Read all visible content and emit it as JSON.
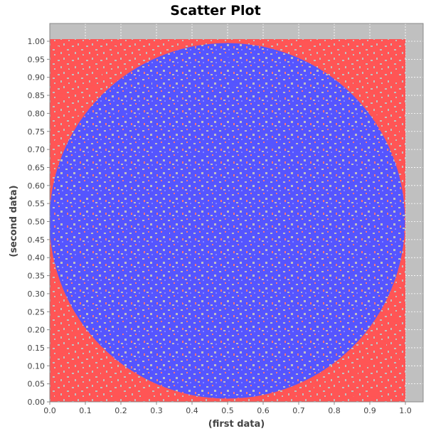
{
  "chart_data": {
    "type": "scatter",
    "title": "Scatter Plot",
    "xlabel": "(first data)",
    "ylabel": "(second data)",
    "xlim": [
      0.0,
      1.0
    ],
    "ylim": [
      0.0,
      1.0
    ],
    "grid": true,
    "background": "#c0c0c0",
    "xticks": [
      "0.0",
      "0.1",
      "0.2",
      "0.3",
      "0.4",
      "0.5",
      "0.6",
      "0.7",
      "0.8",
      "0.9",
      "1.0"
    ],
    "yticks": [
      "0.00",
      "0.05",
      "0.10",
      "0.15",
      "0.20",
      "0.25",
      "0.30",
      "0.35",
      "0.40",
      "0.45",
      "0.50",
      "0.55",
      "0.60",
      "0.65",
      "0.70",
      "0.75",
      "0.80",
      "0.85",
      "0.90",
      "0.95",
      "1.00"
    ],
    "series": [
      {
        "color": "#ff5555",
        "region": "outside circle of radius 0.5 centered at (0.5, 0.5)",
        "points": [
          [
            0.02,
            0.98
          ],
          [
            0.06,
            0.93
          ],
          [
            0.1,
            0.97
          ],
          [
            0.14,
            0.91
          ],
          [
            0.18,
            0.98
          ],
          [
            0.03,
            0.85
          ],
          [
            0.08,
            0.8
          ],
          [
            0.12,
            0.87
          ],
          [
            0.02,
            0.72
          ],
          [
            0.05,
            0.65
          ],
          [
            0.82,
            0.98
          ],
          [
            0.88,
            0.94
          ],
          [
            0.93,
            0.99
          ],
          [
            0.97,
            0.9
          ],
          [
            0.86,
            0.88
          ],
          [
            0.95,
            0.82
          ],
          [
            0.99,
            0.75
          ],
          [
            0.92,
            0.79
          ],
          [
            0.98,
            0.66
          ],
          [
            0.9,
            0.86
          ],
          [
            0.02,
            0.02
          ],
          [
            0.06,
            0.07
          ],
          [
            0.11,
            0.03
          ],
          [
            0.15,
            0.08
          ],
          [
            0.19,
            0.02
          ],
          [
            0.03,
            0.14
          ],
          [
            0.07,
            0.2
          ],
          [
            0.13,
            0.12
          ],
          [
            0.02,
            0.28
          ],
          [
            0.05,
            0.35
          ],
          [
            0.81,
            0.03
          ],
          [
            0.86,
            0.08
          ],
          [
            0.91,
            0.02
          ],
          [
            0.96,
            0.06
          ],
          [
            0.99,
            0.12
          ],
          [
            0.94,
            0.16
          ],
          [
            0.97,
            0.23
          ],
          [
            0.89,
            0.11
          ],
          [
            0.98,
            0.31
          ],
          [
            0.85,
            0.02
          ],
          [
            0.25,
            0.99
          ],
          [
            0.3,
            0.97
          ],
          [
            0.72,
            0.99
          ],
          [
            0.76,
            0.96
          ],
          [
            0.27,
            0.02
          ],
          [
            0.32,
            0.03
          ],
          [
            0.7,
            0.02
          ],
          [
            0.75,
            0.04
          ],
          [
            0.01,
            0.5
          ],
          [
            0.99,
            0.48
          ]
        ]
      },
      {
        "color": "#5555ff",
        "region": "inside circle of radius 0.5 centered at (0.5, 0.5)",
        "points": [
          [
            0.5,
            0.5
          ],
          [
            0.45,
            0.55
          ],
          [
            0.55,
            0.45
          ],
          [
            0.4,
            0.4
          ],
          [
            0.6,
            0.6
          ],
          [
            0.3,
            0.7
          ],
          [
            0.7,
            0.3
          ],
          [
            0.25,
            0.5
          ],
          [
            0.75,
            0.5
          ],
          [
            0.5,
            0.25
          ],
          [
            0.5,
            0.75
          ],
          [
            0.35,
            0.85
          ],
          [
            0.65,
            0.85
          ],
          [
            0.35,
            0.15
          ],
          [
            0.65,
            0.15
          ],
          [
            0.15,
            0.35
          ],
          [
            0.15,
            0.65
          ],
          [
            0.85,
            0.35
          ],
          [
            0.85,
            0.65
          ],
          [
            0.5,
            0.95
          ],
          [
            0.5,
            0.05
          ],
          [
            0.05,
            0.5
          ],
          [
            0.95,
            0.5
          ],
          [
            0.2,
            0.2
          ],
          [
            0.8,
            0.8
          ],
          [
            0.2,
            0.8
          ],
          [
            0.8,
            0.2
          ],
          [
            0.42,
            0.68
          ],
          [
            0.58,
            0.32
          ],
          [
            0.33,
            0.47
          ],
          [
            0.67,
            0.53
          ],
          [
            0.48,
            0.12
          ],
          [
            0.52,
            0.88
          ],
          [
            0.1,
            0.58
          ],
          [
            0.9,
            0.42
          ],
          [
            0.28,
            0.88
          ],
          [
            0.72,
            0.12
          ],
          [
            0.12,
            0.28
          ],
          [
            0.88,
            0.72
          ],
          [
            0.62,
            0.72
          ],
          [
            0.38,
            0.28
          ],
          [
            0.22,
            0.62
          ],
          [
            0.78,
            0.38
          ],
          [
            0.44,
            0.9
          ],
          [
            0.56,
            0.1
          ],
          [
            0.08,
            0.4
          ],
          [
            0.92,
            0.6
          ],
          [
            0.3,
            0.3
          ],
          [
            0.7,
            0.7
          ],
          [
            0.6,
            0.4
          ]
        ]
      }
    ]
  }
}
